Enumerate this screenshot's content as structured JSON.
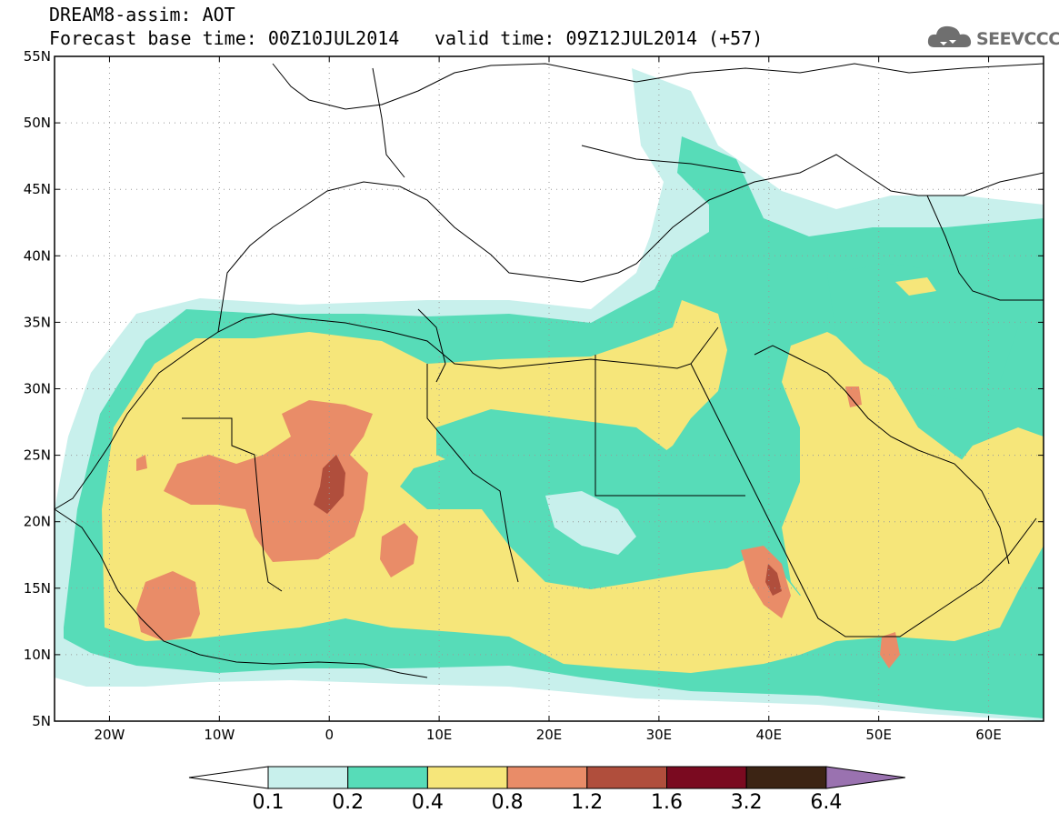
{
  "header": {
    "line1": "DREAM8-assim: AOT",
    "line2_left": "Forecast base time: 00Z10JUL2014",
    "line2_right": "valid time: 09Z12JUL2014 (+57)"
  },
  "logo": {
    "text": "SEEVCCC",
    "icon": "cloud-icon"
  },
  "map": {
    "lon_range": [
      -25,
      65
    ],
    "lat_range": [
      5,
      55
    ],
    "lat_labels": [
      "55N",
      "50N",
      "45N",
      "40N",
      "35N",
      "30N",
      "25N",
      "20N",
      "15N",
      "10N",
      "5N"
    ],
    "lon_labels": [
      "20W",
      "10W",
      "0",
      "10E",
      "20E",
      "30E",
      "40E",
      "50E",
      "60E"
    ],
    "grid": "dotted"
  },
  "colorbar": {
    "levels": [
      "0.1",
      "0.2",
      "0.4",
      "0.8",
      "1.2",
      "1.6",
      "3.2",
      "6.4"
    ],
    "colors": [
      "#c8f0ec",
      "#57dcb8",
      "#f6e67a",
      "#e98c68",
      "#b04e3c",
      "#7a0a20",
      "#3c2414",
      "#9a72b0"
    ],
    "extend": "both"
  }
}
